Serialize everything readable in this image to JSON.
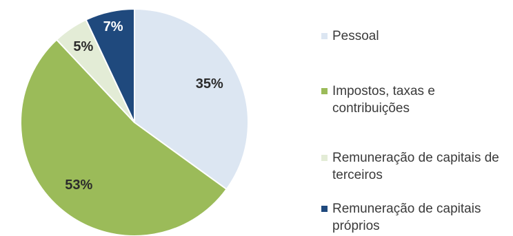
{
  "chart_data": {
    "type": "pie",
    "title": "",
    "categories": [
      "Pessoal",
      "Impostos, taxas e contribuições",
      "Remuneração de capitais de terceiros",
      "Remuneração de capitais próprios"
    ],
    "values": [
      35,
      53,
      5,
      7
    ],
    "labels": [
      "35%",
      "53%",
      "5%",
      "7%"
    ],
    "colors": [
      "#dce6f2",
      "#9bbb59",
      "#e3ecd6",
      "#1f497d"
    ],
    "label_colors": [
      "#2b2b2b",
      "#2b2b2b",
      "#2b2b2b",
      "#ffffff"
    ],
    "start": "12 o'clock",
    "direction": "clockwise",
    "legend_position": "right"
  }
}
